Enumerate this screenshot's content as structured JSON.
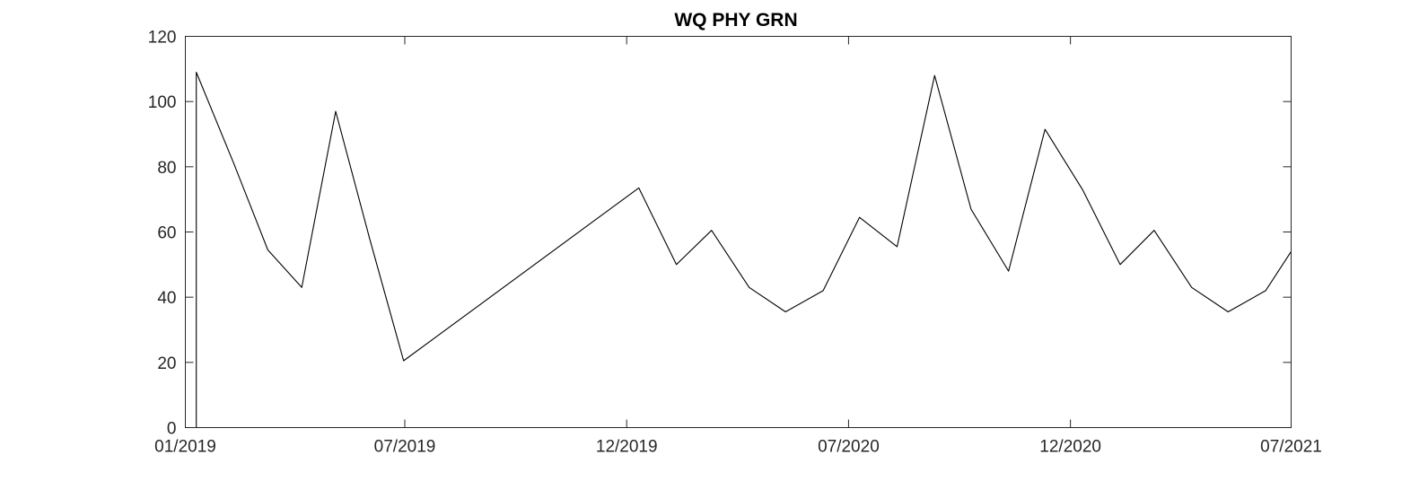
{
  "chart_data": {
    "type": "line",
    "title": "WQ PHY GRN",
    "xlabel": "",
    "ylabel": "",
    "xlim": [
      "2019-01-01",
      "2021-07-01"
    ],
    "ylim": [
      0,
      120
    ],
    "x_ticks": [
      {
        "date": "2019-01-01",
        "label": "01/2019"
      },
      {
        "date": "2019-07-01",
        "label": "07/2019"
      },
      {
        "date": "2019-12-31",
        "label": "12/2019"
      },
      {
        "date": "2020-07-01",
        "label": "07/2020"
      },
      {
        "date": "2020-12-31",
        "label": "12/2020"
      },
      {
        "date": "2021-07-01",
        "label": "07/2021"
      }
    ],
    "y_ticks": [
      0,
      20,
      40,
      60,
      80,
      100,
      120
    ],
    "grid": false,
    "line_color": "#000000",
    "series": [
      {
        "x": [
          "2019-01-10",
          "2019-01-10",
          "2019-02-10",
          "2019-03-10",
          "2019-04-07",
          "2019-05-05",
          "2019-06-02",
          "2019-06-30",
          "2020-01-10",
          "2020-02-10",
          "2020-03-10",
          "2020-04-10",
          "2020-05-10",
          "2020-06-10",
          "2020-07-10",
          "2020-08-10",
          "2020-09-10",
          "2020-10-10",
          "2020-11-10",
          "2020-12-10",
          "2021-01-10",
          "2021-02-10",
          "2021-03-10",
          "2021-04-10",
          "2021-05-10",
          "2021-06-10",
          "2021-07-01"
        ],
        "values": [
          0,
          109,
          81,
          54.5,
          43,
          97,
          58,
          20.5,
          73.5,
          50,
          60.5,
          43,
          35.5,
          42,
          64.5,
          55.5,
          108,
          67,
          48,
          91.5,
          73,
          50,
          60.5,
          43,
          35.5,
          42,
          54
        ]
      }
    ]
  }
}
